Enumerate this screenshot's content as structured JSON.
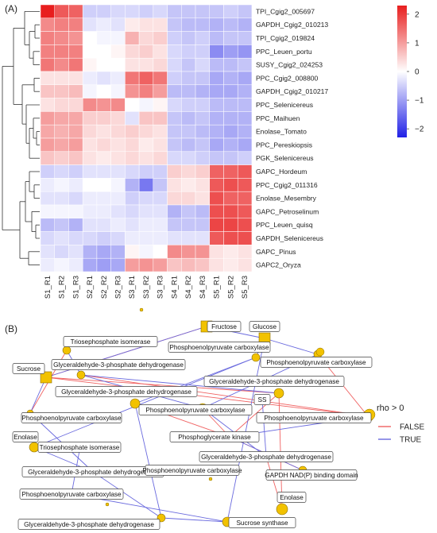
{
  "chart_data": [
    {
      "type": "heatmap",
      "panel_label": "(A)",
      "rows": [
        "TPI_Cgig2_005697",
        "GAPDH_Cgig2_010213",
        "TPI_Cgig2_019824",
        "PPC_Leuen_portu",
        "SUSY_Cgig2_024253",
        "PPC_Cgig2_008800",
        "GAPDH_Cgig2_010217",
        "PPC_Selenicereus",
        "PPC_Maihuen",
        "Enolase_Tomato",
        "PPC_Pereskiopsis",
        "PGK_Selenicereus",
        "GAPC_Hordeum",
        "PPC_Cgig2_011316",
        "Enolase_Mesembry",
        "GAPC_Petroselinum",
        "PPC_Leuen_quisq",
        "GAPDH_Selenicereus",
        "GAPC_Pinus",
        "GAPC2_Oryza"
      ],
      "columns": [
        "S1_R1",
        "S1_R2",
        "S1_R3",
        "S2_R1",
        "S2_R2",
        "S2_R3",
        "S3_R1",
        "S3_R2",
        "S3_R3",
        "S4_R1",
        "S4_R2",
        "S4_R3",
        "S5_R1",
        "S5_R2",
        "S5_R3"
      ],
      "values": [
        [
          2.3,
          1.7,
          1.6,
          -0.5,
          -0.5,
          -0.4,
          -0.4,
          -0.5,
          -0.4,
          -0.6,
          -0.6,
          -0.6,
          -0.6,
          -0.5,
          -0.6
        ],
        [
          1.2,
          1.3,
          1.3,
          -0.3,
          -0.2,
          -0.3,
          0.2,
          0.3,
          0.3,
          -0.6,
          -0.7,
          -0.7,
          -0.8,
          -0.7,
          -0.8
        ],
        [
          1.3,
          1.2,
          1.1,
          0.0,
          -0.1,
          -0.1,
          0.8,
          0.4,
          0.5,
          -0.5,
          -0.6,
          -0.5,
          -0.7,
          -0.6,
          -0.6
        ],
        [
          1.3,
          1.3,
          1.3,
          0.0,
          0.0,
          0.1,
          0.4,
          0.5,
          0.3,
          -0.4,
          -0.5,
          -0.5,
          -1.2,
          -1.0,
          -1.1
        ],
        [
          1.4,
          1.2,
          1.4,
          0.1,
          0.0,
          0.0,
          0.3,
          0.3,
          0.4,
          -0.4,
          -0.6,
          -0.4,
          -0.7,
          -0.7,
          -0.6
        ],
        [
          0.3,
          0.3,
          0.3,
          -0.2,
          -0.3,
          -0.2,
          1.4,
          1.6,
          1.4,
          -0.5,
          -0.6,
          -0.6,
          -0.9,
          -0.8,
          -0.9
        ],
        [
          0.6,
          0.6,
          0.7,
          -0.1,
          0.0,
          -0.1,
          1.1,
          1.3,
          1.0,
          -0.7,
          -0.7,
          -0.8,
          -0.9,
          -0.9,
          -0.8
        ],
        [
          0.3,
          0.4,
          0.4,
          1.2,
          1.1,
          1.2,
          0.0,
          -0.1,
          0.1,
          -0.4,
          -0.5,
          -0.5,
          -0.7,
          -0.7,
          -0.7
        ],
        [
          1.0,
          0.9,
          0.9,
          0.5,
          0.5,
          0.4,
          -0.3,
          0.6,
          0.6,
          -0.6,
          -0.7,
          -0.6,
          -0.8,
          -0.8,
          -0.8
        ],
        [
          0.9,
          0.8,
          0.9,
          0.4,
          0.3,
          0.4,
          0.5,
          0.4,
          0.3,
          -0.6,
          -0.6,
          -0.7,
          -0.8,
          -0.9,
          -0.8
        ],
        [
          1.0,
          0.9,
          1.0,
          0.3,
          0.4,
          0.3,
          0.4,
          0.2,
          0.3,
          -0.6,
          -0.7,
          -0.6,
          -0.9,
          -0.8,
          -0.9
        ],
        [
          0.6,
          0.5,
          0.6,
          0.3,
          0.2,
          0.3,
          0.4,
          0.3,
          0.4,
          -0.4,
          -0.4,
          -0.5,
          -0.6,
          -0.6,
          -0.5
        ],
        [
          -0.5,
          -0.4,
          -0.5,
          -0.3,
          -0.3,
          -0.3,
          -0.4,
          -0.5,
          -0.5,
          0.5,
          0.4,
          0.5,
          1.6,
          1.6,
          1.7
        ],
        [
          -0.2,
          -0.1,
          -0.2,
          0.0,
          0.0,
          -0.1,
          -0.8,
          -1.4,
          -0.6,
          0.3,
          0.2,
          0.3,
          1.7,
          1.8,
          1.7
        ],
        [
          -0.3,
          -0.3,
          -0.4,
          -0.2,
          -0.2,
          -0.2,
          -0.5,
          -0.4,
          -0.4,
          0.4,
          0.4,
          0.3,
          1.8,
          1.6,
          1.6
        ],
        [
          -0.1,
          -0.1,
          -0.1,
          -0.2,
          -0.2,
          -0.3,
          -0.4,
          -0.3,
          -0.3,
          -0.8,
          -0.6,
          -0.7,
          1.8,
          1.8,
          1.7
        ],
        [
          -0.7,
          -0.6,
          -0.8,
          -0.3,
          -0.3,
          -0.2,
          -0.3,
          -0.2,
          -0.2,
          -0.6,
          -0.6,
          -0.6,
          1.9,
          1.9,
          1.8
        ],
        [
          -0.4,
          -0.3,
          -0.4,
          -0.4,
          -0.5,
          -0.4,
          -0.2,
          -0.2,
          -0.2,
          -0.3,
          -0.3,
          -0.3,
          1.7,
          1.8,
          1.8
        ],
        [
          -0.3,
          -0.4,
          -0.3,
          -0.8,
          -0.9,
          -0.8,
          0.1,
          -0.1,
          0.0,
          1.2,
          1.1,
          1.1,
          0.3,
          0.2,
          0.3
        ],
        [
          -0.2,
          -0.1,
          -0.2,
          -0.9,
          -1.0,
          -0.9,
          1.0,
          1.1,
          1.0,
          0.6,
          0.7,
          0.6,
          0.3,
          0.2,
          0.3
        ]
      ],
      "color_scale": {
        "min": -2.3,
        "max": 2.3,
        "low": "#2121e6",
        "mid": "#ffffff",
        "high": "#e81e1e"
      },
      "colorbar_ticks": [
        2,
        1,
        0,
        -1,
        -2
      ],
      "row_clusters": [
        "TPI_Cgig2_005697 … PGK_Selenicereus",
        "GAPC_Hordeum … GAPC2_Oryza"
      ]
    },
    {
      "type": "network",
      "panel_label": "(B)",
      "legend_title": "rho > 0",
      "legend": [
        {
          "label": "FALSE",
          "color": "#f06262"
        },
        {
          "label": "TRUE",
          "color": "#6a6ade"
        }
      ],
      "node_color": "#f2c200",
      "nodes": [
        "Fructose",
        "Glucose",
        "Triosephosphate isomerase",
        "Phosphoenolpyruvate carboxylase",
        "Sucrose",
        "Glyceraldehyde-3-phosphate dehydrogenase",
        "Phosphoenolpyruvate carboxylase",
        "Glyceraldehyde-3-phosphate dehydrogenase",
        "Glyceraldehyde-3-phosphate dehydrogenase",
        "SS",
        "Phosphoenolpyruvate carboxylase",
        "Phosphoenolpyruvate carboxylase",
        "Phosphoenolpyruvate carboxylase",
        "Phosphoglycerate kinase",
        "Enolase",
        "Triosephosphate isomerase",
        "Glyceraldehyde-3-phosphate dehydrogenase",
        "Glyceraldehyde-3-phosphate dehydrogenase",
        "Phosphoenolpyruvate carboxylase",
        "GAPDH NAD(P) binding domain",
        "Phosphoenolpyruvate carboxylase",
        "Enolase",
        "Glyceraldehyde-3-phosphate dehydrogenase",
        "Sucrose synthase"
      ]
    }
  ]
}
